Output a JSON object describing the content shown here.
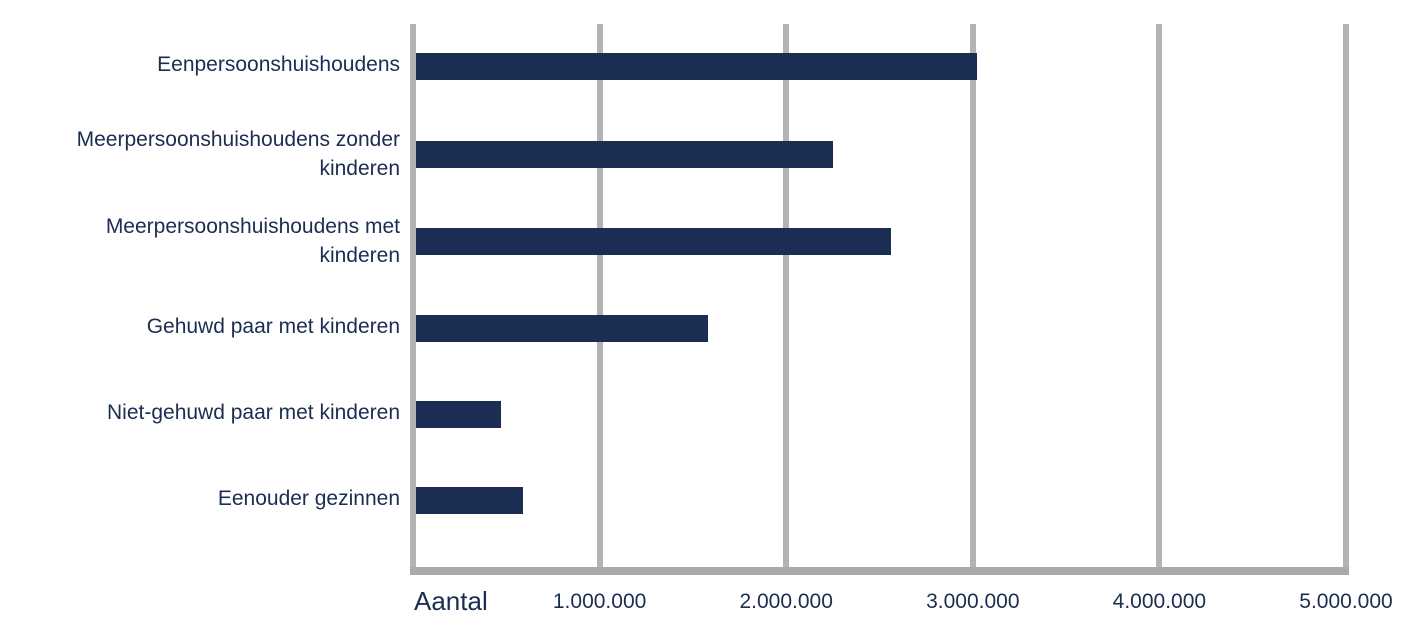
{
  "chart_data": {
    "type": "bar",
    "orientation": "horizontal",
    "title": "",
    "xlabel": "Aantal",
    "ylabel": "",
    "categories": [
      "Eenpersoonshuishoudens",
      "Meerpersoonshuishoudens zonder kinderen",
      "Meerpersoonshuishoudens met kinderen",
      "Gehuwd paar met kinderen",
      "Niet-gehuwd paar met kinderen",
      "Eenouder gezinnen"
    ],
    "category_labels_display": [
      "Eenpersoonshuishoudens",
      "Meerpersoonshuishoudens zonder\nkinderen",
      "Meerpersoonshuishoudens met\nkinderen",
      "Gehuwd paar met kinderen",
      "Niet-gehuwd paar met kinderen",
      "Eenouder gezinnen"
    ],
    "values": [
      3020000,
      2250000,
      2560000,
      1580000,
      470000,
      590000
    ],
    "xlim": [
      0,
      5000000
    ],
    "x_ticks": [
      1000000,
      2000000,
      3000000,
      4000000,
      5000000
    ],
    "x_tick_labels": [
      "1.000.000",
      "2.000.000",
      "3.000.000",
      "4.000.000",
      "5.000.000"
    ],
    "grid": true,
    "legend": null,
    "colors": {
      "bar": "#1b2d52",
      "grid": "#b3b3b3",
      "text": "#1b2d52"
    }
  },
  "axis": {
    "title": "Aantal"
  }
}
